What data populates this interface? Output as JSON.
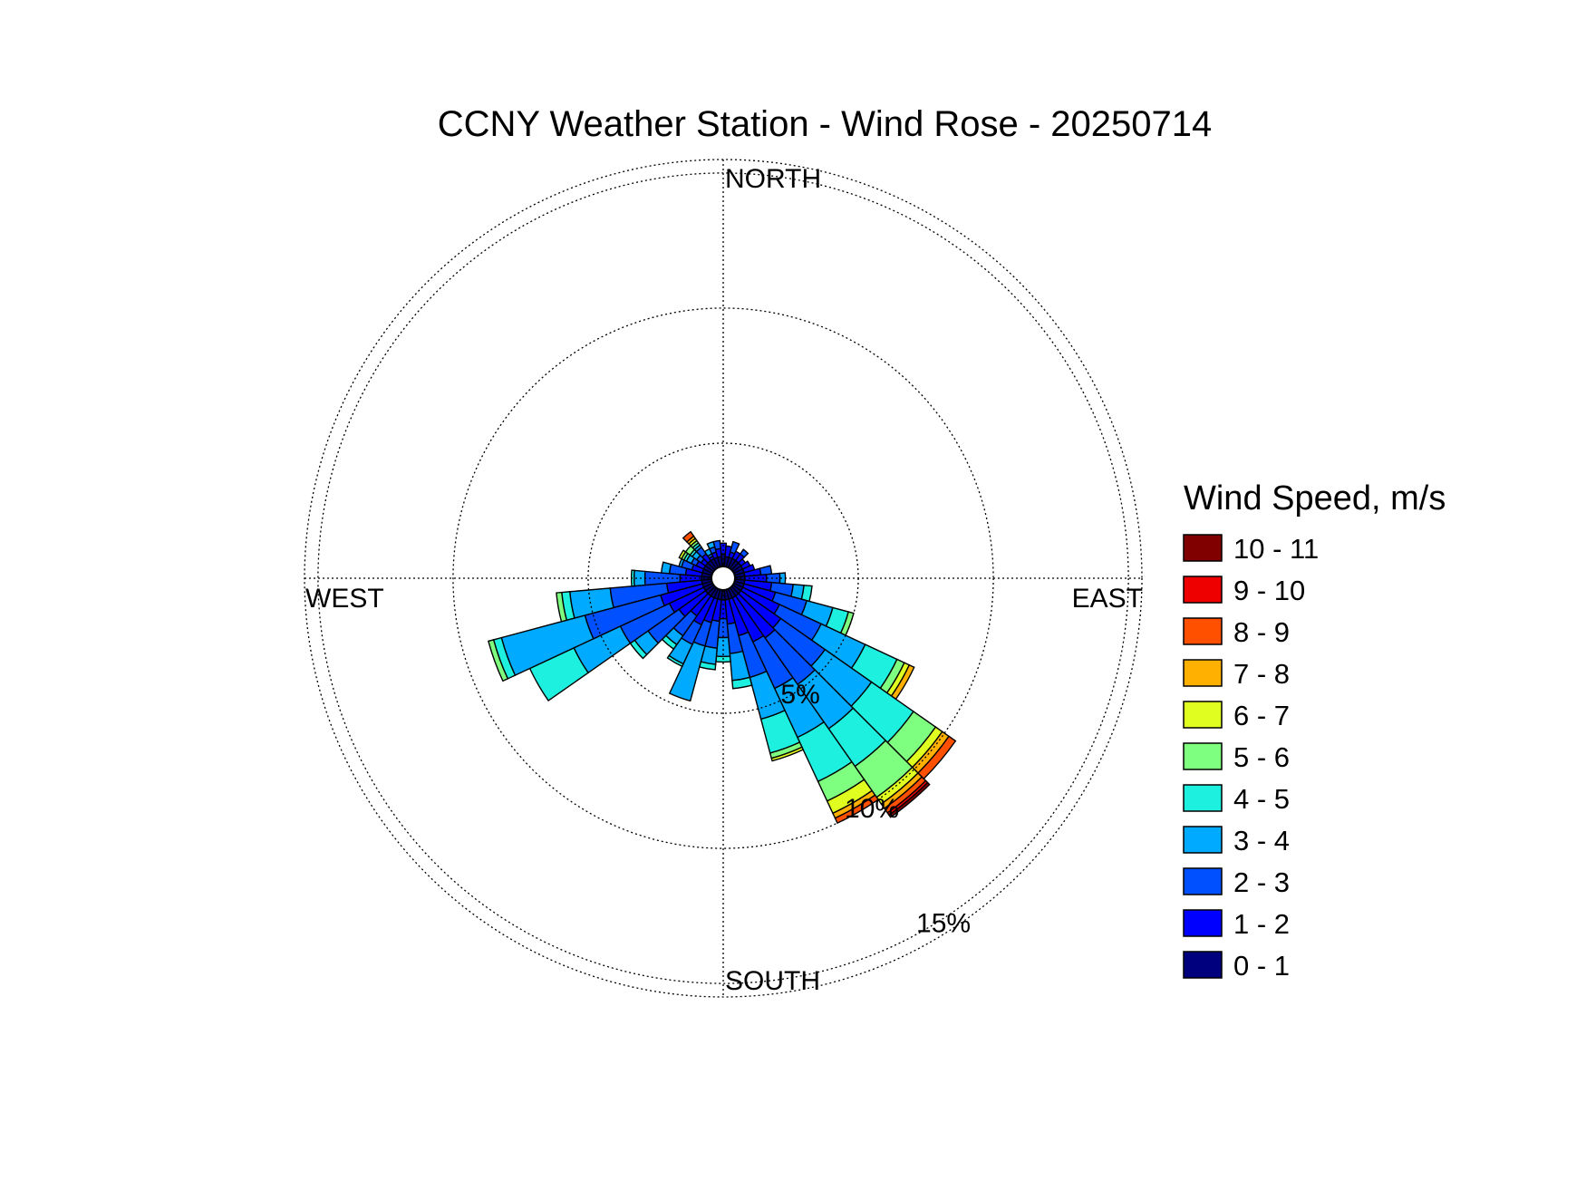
{
  "chart_data": {
    "type": "wind-rose",
    "title": "CCNY Weather Station - Wind Rose - 20250714",
    "directions_deg_start": 0,
    "sector_width_deg": 10,
    "cardinal_labels": {
      "north": "NORTH",
      "south": "SOUTH",
      "east": "EAST",
      "west": "WEST"
    },
    "radial_ticks": [
      {
        "value": 5,
        "label": "5%"
      },
      {
        "value": 10,
        "label": "10%"
      },
      {
        "value": 15,
        "label": "15%"
      }
    ],
    "rmax": 15.5,
    "grid": true,
    "legend": {
      "title": "Wind Speed, m/s",
      "position": "right",
      "bins": [
        {
          "label": "0 - 1",
          "color": "#00007f"
        },
        {
          "label": "1 - 2",
          "color": "#0000ff"
        },
        {
          "label": "2 - 3",
          "color": "#0050ff"
        },
        {
          "label": "3 - 4",
          "color": "#00aaff"
        },
        {
          "label": "4 - 5",
          "color": "#1ef0e0"
        },
        {
          "label": "5 - 6",
          "color": "#7fff7f"
        },
        {
          "label": "6 - 7",
          "color": "#e0ff20"
        },
        {
          "label": "7 - 8",
          "color": "#ffb000"
        },
        {
          "label": "8 - 9",
          "color": "#ff5000"
        },
        {
          "label": "9 - 10",
          "color": "#ef0000"
        },
        {
          "label": "10 - 11",
          "color": "#800000"
        }
      ]
    },
    "units": "% frequency",
    "sectors": [
      {
        "dir": 0,
        "cum": [
          0.9,
          1.3
        ]
      },
      {
        "dir": 10,
        "cum": [
          0.8,
          1.2
        ]
      },
      {
        "dir": 20,
        "cum": [
          0.8,
          1.0,
          1.4
        ]
      },
      {
        "dir": 30,
        "cum": [
          0.8,
          1.1
        ]
      },
      {
        "dir": 40,
        "cum": [
          0.8,
          1.1,
          1.3
        ]
      },
      {
        "dir": 50,
        "cum": [
          0.8,
          1.0
        ]
      },
      {
        "dir": 60,
        "cum": [
          0.8,
          1.1
        ]
      },
      {
        "dir": 70,
        "cum": [
          0.8,
          1.2
        ]
      },
      {
        "dir": 80,
        "cum": [
          0.8,
          1.4,
          1.8
        ]
      },
      {
        "dir": 90,
        "cum": [
          0.8,
          1.6,
          2.1,
          2.3
        ]
      },
      {
        "dir": 100,
        "cum": [
          0.8,
          1.8,
          2.6,
          3.0,
          3.3
        ]
      },
      {
        "dir": 110,
        "cum": [
          0.8,
          2.0,
          3.2,
          4.2,
          4.8,
          5.0
        ]
      },
      {
        "dir": 120,
        "cum": [
          0.8,
          2.3,
          4.0,
          5.8,
          7.1,
          7.4,
          7.6,
          7.8
        ]
      },
      {
        "dir": 130,
        "cum": [
          0.8,
          2.6,
          4.6,
          6.7,
          8.6,
          9.6,
          9.9,
          10.2,
          10.5
        ]
      },
      {
        "dir": 140,
        "cum": [
          0.8,
          2.7,
          4.8,
          6.8,
          8.5,
          9.9,
          10.2,
          10.4,
          10.6,
          10.7,
          10.8
        ]
      },
      {
        "dir": 150,
        "cum": [
          0.8,
          2.6,
          4.5,
          6.5,
          8.3,
          9.1,
          9.6,
          9.8,
          10.0
        ]
      },
      {
        "dir": 160,
        "cum": [
          0.8,
          2.2,
          3.8,
          5.4,
          6.7,
          6.9,
          7.0
        ]
      },
      {
        "dir": 170,
        "cum": [
          0.8,
          1.7,
          2.8,
          3.8,
          4.1
        ]
      },
      {
        "dir": 180,
        "cum": [
          0.8,
          1.5,
          2.2,
          2.9,
          3.1
        ]
      },
      {
        "dir": 190,
        "cum": [
          0.8,
          1.6,
          2.6,
          3.2,
          3.4
        ]
      },
      {
        "dir": 200,
        "cum": [
          0.8,
          1.7,
          2.6,
          4.7
        ]
      },
      {
        "dir": 210,
        "cum": [
          0.8,
          1.9,
          2.7,
          3.5,
          3.6
        ]
      },
      {
        "dir": 220,
        "cum": [
          0.8,
          1.7,
          2.6,
          3.0,
          3.2
        ]
      },
      {
        "dir": 230,
        "cum": [
          0.8,
          2.0,
          3.4,
          4.0,
          4.2
        ]
      },
      {
        "dir": 240,
        "cum": [
          0.8,
          2.2,
          4.2,
          6.1,
          7.9
        ]
      },
      {
        "dir": 250,
        "cum": [
          0.8,
          2.4,
          5.3,
          8.5,
          8.8,
          9.0
        ]
      },
      {
        "dir": 260,
        "cum": [
          0.8,
          2.1,
          4.2,
          5.7,
          6.0,
          6.2
        ]
      },
      {
        "dir": 270,
        "cum": [
          0.8,
          1.6,
          2.9,
          3.3,
          3.4
        ]
      },
      {
        "dir": 280,
        "cum": [
          0.8,
          1.4,
          2.0,
          2.3
        ]
      },
      {
        "dir": 290,
        "cum": [
          0.8,
          1.2,
          1.6,
          1.7
        ]
      },
      {
        "dir": 300,
        "cum": [
          0.8,
          1.1,
          1.3,
          1.5,
          1.6,
          1.7,
          1.8
        ]
      },
      {
        "dir": 310,
        "cum": [
          0.8,
          1.0,
          1.2,
          1.4,
          1.5,
          1.7
        ]
      },
      {
        "dir": 320,
        "cum": [
          0.8,
          1.1,
          1.4,
          1.5,
          1.6,
          1.7,
          1.8,
          1.9,
          2.1
        ]
      },
      {
        "dir": 330,
        "cum": [
          0.8,
          0.9,
          1.0,
          1.2
        ]
      },
      {
        "dir": 340,
        "cum": [
          0.8,
          1.0,
          1.2,
          1.4
        ]
      },
      {
        "dir": 350,
        "cum": [
          0.8,
          1.1,
          1.4
        ]
      }
    ]
  }
}
